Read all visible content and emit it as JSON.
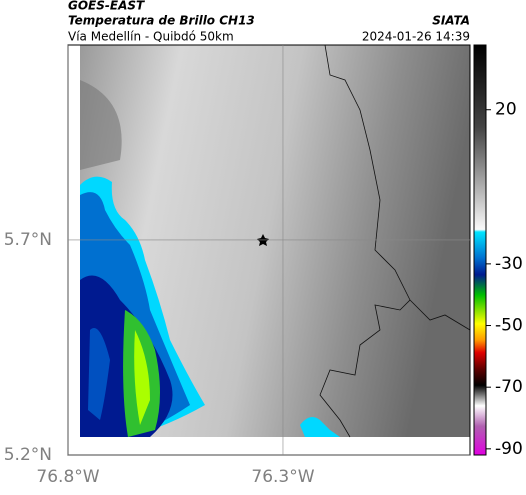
{
  "header": {
    "satellite": "GOES-EAST",
    "title": "Temperatura de Brillo CH13",
    "source": "SIATA",
    "subtitle": "Vía Medellín - Quibdó 50km",
    "datetime": "2024-01-26 14:39"
  },
  "map": {
    "xlim": [
      -76.8,
      -75.865
    ],
    "ylim": [
      5.2,
      6.153
    ],
    "xticks": [
      {
        "value": -76.8,
        "label": "76.8°W"
      },
      {
        "value": -76.3,
        "label": "76.3°W"
      }
    ],
    "yticks": [
      {
        "value": 5.2,
        "label": "5.2°N"
      },
      {
        "value": 5.7,
        "label": "5.7°N"
      }
    ],
    "colorbar": {
      "lim": [
        -92,
        41
      ],
      "ticks": [
        20,
        -30,
        -50,
        -70,
        -90
      ]
    }
  }
}
